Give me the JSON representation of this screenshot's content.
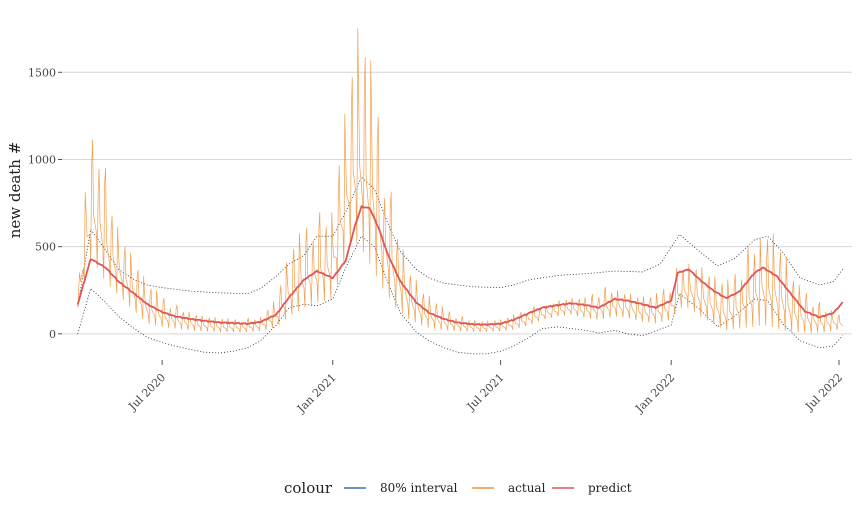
{
  "chart_data": {
    "type": "line",
    "ylabel": "new death #",
    "y_ticks": [
      0,
      500,
      1000,
      1500
    ],
    "y_tick_labels": [
      "0",
      "500",
      "1000",
      "1500"
    ],
    "x_ticks": [
      "2020-07-01",
      "2021-01-01",
      "2021-07-01",
      "2022-01-01",
      "2022-07-01"
    ],
    "x_tick_labels": [
      "Jul 2020",
      "Jan 2021",
      "Jul 2021",
      "Jan 2022",
      "Jul 2022"
    ],
    "xlim": [
      "2020-03-15",
      "2022-07-15"
    ],
    "ylim": [
      -150,
      1800
    ],
    "grid": true,
    "legend": {
      "title": "colour",
      "position": "bottom",
      "entries": [
        {
          "label": "80% interval",
          "color": "#3b6fb6"
        },
        {
          "label": "actual",
          "color": "#f0933b"
        },
        {
          "label": "predict",
          "color": "#e05555"
        }
      ]
    },
    "series": [
      {
        "name": "predict",
        "color": "#e05555",
        "points": [
          [
            "2020-04-01",
            170
          ],
          [
            "2020-04-15",
            430
          ],
          [
            "2020-05-01",
            380
          ],
          [
            "2020-05-15",
            300
          ],
          [
            "2020-06-01",
            230
          ],
          [
            "2020-06-15",
            170
          ],
          [
            "2020-07-01",
            125
          ],
          [
            "2020-07-15",
            100
          ],
          [
            "2020-08-01",
            85
          ],
          [
            "2020-08-15",
            75
          ],
          [
            "2020-09-01",
            65
          ],
          [
            "2020-09-15",
            62
          ],
          [
            "2020-10-01",
            58
          ],
          [
            "2020-10-15",
            68
          ],
          [
            "2020-11-01",
            110
          ],
          [
            "2020-11-15",
            210
          ],
          [
            "2020-12-01",
            310
          ],
          [
            "2020-12-15",
            360
          ],
          [
            "2021-01-01",
            320
          ],
          [
            "2021-01-15",
            420
          ],
          [
            "2021-01-25",
            620
          ],
          [
            "2021-02-01",
            730
          ],
          [
            "2021-02-10",
            720
          ],
          [
            "2021-02-20",
            600
          ],
          [
            "2021-03-01",
            460
          ],
          [
            "2021-03-15",
            300
          ],
          [
            "2021-04-01",
            180
          ],
          [
            "2021-04-15",
            120
          ],
          [
            "2021-05-01",
            85
          ],
          [
            "2021-05-15",
            65
          ],
          [
            "2021-06-01",
            55
          ],
          [
            "2021-06-15",
            53
          ],
          [
            "2021-07-01",
            58
          ],
          [
            "2021-07-15",
            80
          ],
          [
            "2021-08-01",
            120
          ],
          [
            "2021-08-15",
            150
          ],
          [
            "2021-09-01",
            165
          ],
          [
            "2021-09-15",
            175
          ],
          [
            "2021-10-01",
            165
          ],
          [
            "2021-10-15",
            150
          ],
          [
            "2021-11-01",
            200
          ],
          [
            "2021-11-15",
            190
          ],
          [
            "2021-12-01",
            170
          ],
          [
            "2021-12-15",
            150
          ],
          [
            "2022-01-01",
            190
          ],
          [
            "2022-01-08",
            350
          ],
          [
            "2022-01-20",
            370
          ],
          [
            "2022-02-01",
            310
          ],
          [
            "2022-02-15",
            250
          ],
          [
            "2022-03-01",
            205
          ],
          [
            "2022-03-15",
            240
          ],
          [
            "2022-04-01",
            350
          ],
          [
            "2022-04-10",
            380
          ],
          [
            "2022-04-25",
            330
          ],
          [
            "2022-05-10",
            230
          ],
          [
            "2022-05-25",
            130
          ],
          [
            "2022-06-10",
            95
          ],
          [
            "2022-06-25",
            120
          ],
          [
            "2022-07-05",
            180
          ]
        ]
      },
      {
        "name": "80% interval",
        "color": "#222222",
        "upper": [
          [
            "2020-04-01",
            160
          ],
          [
            "2020-04-15",
            600
          ],
          [
            "2020-05-01",
            480
          ],
          [
            "2020-05-15",
            370
          ],
          [
            "2020-06-01",
            310
          ],
          [
            "2020-06-15",
            280
          ],
          [
            "2020-07-01",
            265
          ],
          [
            "2020-08-01",
            245
          ],
          [
            "2020-09-01",
            235
          ],
          [
            "2020-10-01",
            230
          ],
          [
            "2020-10-15",
            260
          ],
          [
            "2020-11-01",
            330
          ],
          [
            "2020-11-15",
            400
          ],
          [
            "2020-12-01",
            450
          ],
          [
            "2020-12-15",
            560
          ],
          [
            "2021-01-01",
            560
          ],
          [
            "2021-01-15",
            700
          ],
          [
            "2021-02-01",
            900
          ],
          [
            "2021-02-15",
            830
          ],
          [
            "2021-03-01",
            640
          ],
          [
            "2021-03-15",
            470
          ],
          [
            "2021-04-01",
            370
          ],
          [
            "2021-04-15",
            320
          ],
          [
            "2021-05-01",
            290
          ],
          [
            "2021-06-01",
            270
          ],
          [
            "2021-07-01",
            265
          ],
          [
            "2021-07-15",
            280
          ],
          [
            "2021-08-01",
            310
          ],
          [
            "2021-09-01",
            335
          ],
          [
            "2021-10-01",
            345
          ],
          [
            "2021-11-01",
            360
          ],
          [
            "2021-12-01",
            355
          ],
          [
            "2021-12-20",
            400
          ],
          [
            "2022-01-10",
            570
          ],
          [
            "2022-02-01",
            470
          ],
          [
            "2022-02-20",
            390
          ],
          [
            "2022-03-10",
            430
          ],
          [
            "2022-04-01",
            540
          ],
          [
            "2022-04-15",
            560
          ],
          [
            "2022-05-01",
            470
          ],
          [
            "2022-05-20",
            320
          ],
          [
            "2022-06-10",
            280
          ],
          [
            "2022-06-25",
            300
          ],
          [
            "2022-07-05",
            370
          ]
        ],
        "lower": [
          [
            "2020-04-01",
            0
          ],
          [
            "2020-04-15",
            260
          ],
          [
            "2020-05-01",
            180
          ],
          [
            "2020-05-15",
            100
          ],
          [
            "2020-06-01",
            30
          ],
          [
            "2020-06-15",
            -20
          ],
          [
            "2020-07-01",
            -50
          ],
          [
            "2020-07-15",
            -70
          ],
          [
            "2020-08-01",
            -90
          ],
          [
            "2020-08-15",
            -105
          ],
          [
            "2020-09-01",
            -110
          ],
          [
            "2020-09-15",
            -100
          ],
          [
            "2020-10-01",
            -80
          ],
          [
            "2020-10-15",
            -40
          ],
          [
            "2020-11-01",
            50
          ],
          [
            "2020-11-15",
            150
          ],
          [
            "2020-12-01",
            170
          ],
          [
            "2020-12-15",
            160
          ],
          [
            "2021-01-01",
            200
          ],
          [
            "2021-01-15",
            380
          ],
          [
            "2021-02-01",
            560
          ],
          [
            "2021-02-15",
            500
          ],
          [
            "2021-03-01",
            300
          ],
          [
            "2021-03-15",
            120
          ],
          [
            "2021-04-01",
            10
          ],
          [
            "2021-04-15",
            -40
          ],
          [
            "2021-05-01",
            -80
          ],
          [
            "2021-05-15",
            -105
          ],
          [
            "2021-06-01",
            -115
          ],
          [
            "2021-06-15",
            -115
          ],
          [
            "2021-07-01",
            -100
          ],
          [
            "2021-07-15",
            -70
          ],
          [
            "2021-08-01",
            -20
          ],
          [
            "2021-08-15",
            30
          ],
          [
            "2021-09-01",
            40
          ],
          [
            "2021-10-01",
            20
          ],
          [
            "2021-10-15",
            5
          ],
          [
            "2021-11-01",
            20
          ],
          [
            "2021-11-15",
            0
          ],
          [
            "2021-12-01",
            -10
          ],
          [
            "2022-01-01",
            50
          ],
          [
            "2022-01-10",
            230
          ],
          [
            "2022-02-01",
            140
          ],
          [
            "2022-02-20",
            40
          ],
          [
            "2022-03-10",
            100
          ],
          [
            "2022-04-01",
            200
          ],
          [
            "2022-04-15",
            190
          ],
          [
            "2022-05-01",
            60
          ],
          [
            "2022-05-20",
            -40
          ],
          [
            "2022-06-10",
            -80
          ],
          [
            "2022-06-25",
            -70
          ],
          [
            "2022-07-05",
            -10
          ]
        ]
      },
      {
        "name": "actual",
        "color": "#f0933b",
        "description_free_envelope_note": "",
        "daily_envelope": [
          [
            "2020-04-01",
            150,
            210
          ],
          [
            "2020-04-08",
            300,
            760
          ],
          [
            "2020-04-15",
            420,
            1120
          ],
          [
            "2020-04-22",
            380,
            1220
          ],
          [
            "2020-05-01",
            300,
            950
          ],
          [
            "2020-05-15",
            220,
            650
          ],
          [
            "2020-06-01",
            130,
            450
          ],
          [
            "2020-06-15",
            60,
            300
          ],
          [
            "2020-07-01",
            40,
            220
          ],
          [
            "2020-07-15",
            30,
            170
          ],
          [
            "2020-08-01",
            20,
            140
          ],
          [
            "2020-08-15",
            15,
            110
          ],
          [
            "2020-09-01",
            10,
            95
          ],
          [
            "2020-09-15",
            10,
            85
          ],
          [
            "2020-10-01",
            10,
            90
          ],
          [
            "2020-10-15",
            15,
            110
          ],
          [
            "2020-11-01",
            40,
            220
          ],
          [
            "2020-11-15",
            100,
            480
          ],
          [
            "2020-12-01",
            150,
            620
          ],
          [
            "2020-12-15",
            180,
            680
          ],
          [
            "2021-01-01",
            200,
            780
          ],
          [
            "2021-01-10",
            350,
            1200
          ],
          [
            "2021-01-20",
            500,
            1560
          ],
          [
            "2021-01-28",
            520,
            1810
          ],
          [
            "2021-02-05",
            450,
            1700
          ],
          [
            "2021-02-15",
            350,
            1480
          ],
          [
            "2021-02-25",
            250,
            1000
          ],
          [
            "2021-03-10",
            150,
            700
          ],
          [
            "2021-03-25",
            80,
            400
          ],
          [
            "2021-04-10",
            40,
            250
          ],
          [
            "2021-05-01",
            20,
            150
          ],
          [
            "2021-05-20",
            15,
            100
          ],
          [
            "2021-06-10",
            10,
            80
          ],
          [
            "2021-07-01",
            15,
            85
          ],
          [
            "2021-07-15",
            25,
            110
          ],
          [
            "2021-08-01",
            50,
            150
          ],
          [
            "2021-08-15",
            80,
            170
          ],
          [
            "2021-09-01",
            100,
            200
          ],
          [
            "2021-09-15",
            110,
            210
          ],
          [
            "2021-10-01",
            90,
            210
          ],
          [
            "2021-10-15",
            80,
            260
          ],
          [
            "2021-11-01",
            100,
            280
          ],
          [
            "2021-11-15",
            90,
            250
          ],
          [
            "2021-12-01",
            70,
            220
          ],
          [
            "2021-12-15",
            60,
            230
          ],
          [
            "2022-01-01",
            80,
            300
          ],
          [
            "2022-01-10",
            150,
            420
          ],
          [
            "2022-01-20",
            150,
            440
          ],
          [
            "2022-02-01",
            100,
            420
          ],
          [
            "2022-02-15",
            60,
            350
          ],
          [
            "2022-03-01",
            20,
            300
          ],
          [
            "2022-03-15",
            30,
            380
          ],
          [
            "2022-04-01",
            40,
            580
          ],
          [
            "2022-04-10",
            50,
            660
          ],
          [
            "2022-04-20",
            40,
            640
          ],
          [
            "2022-05-01",
            20,
            520
          ],
          [
            "2022-05-15",
            10,
            300
          ],
          [
            "2022-06-01",
            5,
            220
          ],
          [
            "2022-06-15",
            10,
            160
          ],
          [
            "2022-06-28",
            20,
            150
          ],
          [
            "2022-07-05",
            30,
            100
          ]
        ]
      }
    ]
  }
}
